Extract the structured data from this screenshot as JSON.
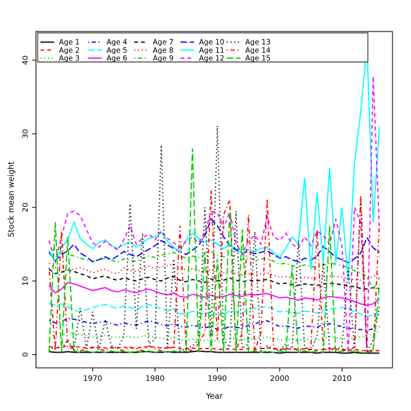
{
  "figure": {
    "background": "#ffffff",
    "xlabel": "Year",
    "ylabel": "Stock mean weight"
  },
  "chart_data": {
    "type": "line",
    "title": "",
    "xlabel": "Year",
    "ylabel": "Stock mean weight",
    "grid": false,
    "legend_position": "top",
    "legend_ncol": 5,
    "xlim": [
      1960.9,
      2018.1
    ],
    "ylim": [
      -1.8,
      43.9
    ],
    "x_ticks": [
      1970,
      1980,
      1990,
      2000,
      2010
    ],
    "y_ticks": [
      0,
      10,
      20,
      30,
      40
    ],
    "x": [
      1963,
      1964,
      1965,
      1966,
      1967,
      1968,
      1969,
      1970,
      1971,
      1972,
      1973,
      1974,
      1975,
      1976,
      1977,
      1978,
      1979,
      1980,
      1981,
      1982,
      1983,
      1984,
      1985,
      1986,
      1987,
      1988,
      1989,
      1990,
      1991,
      1992,
      1993,
      1994,
      1995,
      1996,
      1997,
      1998,
      1999,
      2000,
      2001,
      2002,
      2003,
      2004,
      2005,
      2006,
      2007,
      2008,
      2009,
      2010,
      2011,
      2012,
      2013,
      2014,
      2015,
      2016
    ],
    "series": [
      {
        "name": "Age 1",
        "color": "#000000",
        "linestyle": "solid",
        "values": [
          0.4,
          0.3,
          0.3,
          0.4,
          0.3,
          0.3,
          0.3,
          0.3,
          0.3,
          0.3,
          0.3,
          0.3,
          0.3,
          0.3,
          0.3,
          0.4,
          0.4,
          0.3,
          0.3,
          0.4,
          0.3,
          0.3,
          0.3,
          0.4,
          0.5,
          0.4,
          0.4,
          0.3,
          0.3,
          0.3,
          0.3,
          0.3,
          0.3,
          0.3,
          0.3,
          0.3,
          0.3,
          0.2,
          0.3,
          0.3,
          0.3,
          0.3,
          0.3,
          0.2,
          0.3,
          0.3,
          0.3,
          0.2,
          0.2,
          0.3,
          0.2,
          0.2,
          0.2,
          0.2
        ]
      },
      {
        "name": "Age 2",
        "color": "#FF0000",
        "linestyle": "dashed",
        "values": [
          1.1,
          0.9,
          1.0,
          1.2,
          1.1,
          1.0,
          0.9,
          0.9,
          1.0,
          0.9,
          0.9,
          0.9,
          1.0,
          0.9,
          0.9,
          1.0,
          1.1,
          1.0,
          0.9,
          0.9,
          1.0,
          0.8,
          0.8,
          0.9,
          0.8,
          0.8,
          0.9,
          0.7,
          0.7,
          0.8,
          0.7,
          0.7,
          0.8,
          0.7,
          0.8,
          0.9,
          0.8,
          0.7,
          0.8,
          0.7,
          0.7,
          0.8,
          0.7,
          0.6,
          0.7,
          0.8,
          0.7,
          0.6,
          0.6,
          0.7,
          0.6,
          0.5,
          0.6,
          0.5
        ]
      },
      {
        "name": "Age 3",
        "color": "#00CD00",
        "linestyle": "dotted",
        "values": [
          2.8,
          2.5,
          2.6,
          3.0,
          2.9,
          2.7,
          2.6,
          2.4,
          2.5,
          2.6,
          2.4,
          2.3,
          2.5,
          2.4,
          2.3,
          2.5,
          2.6,
          2.4,
          2.2,
          2.1,
          2.3,
          2.0,
          1.9,
          2.1,
          2.0,
          1.9,
          2.1,
          1.8,
          1.9,
          2.2,
          2.1,
          2.0,
          2.2,
          2.1,
          2.3,
          2.4,
          2.2,
          2.0,
          2.1,
          2.0,
          1.9,
          2.1,
          2.0,
          1.9,
          2.2,
          2.4,
          2.3,
          2.2,
          2.1,
          2.3,
          2.4,
          2.5,
          2.8,
          3.2
        ]
      },
      {
        "name": "Age 4",
        "color": "#0000FF",
        "linestyle": "dotdash",
        "values": [
          4.7,
          4.3,
          4.5,
          4.9,
          4.8,
          4.6,
          4.4,
          4.2,
          4.4,
          4.5,
          4.2,
          4.0,
          4.3,
          4.1,
          4.0,
          4.3,
          4.6,
          4.4,
          4.1,
          3.9,
          4.2,
          3.8,
          3.7,
          4.0,
          3.8,
          3.6,
          3.9,
          3.4,
          3.5,
          3.8,
          3.7,
          3.6,
          4.0,
          4.2,
          4.4,
          4.6,
          4.2,
          3.8,
          3.9,
          3.7,
          3.6,
          3.9,
          3.8,
          3.7,
          4.1,
          4.2,
          4.0,
          3.8,
          3.6,
          3.5,
          3.4,
          3.3,
          3.5,
          3.8
        ]
      },
      {
        "name": "Age 5",
        "color": "#00FFFF",
        "linestyle": "longdash",
        "values": [
          7.0,
          6.7,
          6.9,
          6.5,
          6.0,
          5.9,
          6.1,
          6.4,
          6.6,
          6.8,
          6.5,
          6.3,
          6.6,
          6.4,
          6.2,
          6.5,
          6.8,
          6.6,
          6.2,
          5.9,
          6.2,
          5.6,
          5.5,
          5.9,
          5.7,
          5.5,
          5.8,
          5.4,
          5.5,
          5.9,
          5.8,
          5.7,
          6.1,
          6.3,
          6.4,
          6.5,
          6.2,
          5.8,
          5.9,
          5.7,
          5.6,
          5.9,
          5.8,
          5.6,
          6.0,
          6.2,
          6.3,
          6.4,
          6.2,
          5.8,
          5.5,
          5.2,
          5.4,
          5.6
        ]
      },
      {
        "name": "Age 6",
        "color": "#FF00FF",
        "linestyle": "solid",
        "values": [
          9.4,
          8.4,
          8.9,
          9.8,
          9.6,
          9.3,
          9.0,
          8.7,
          8.9,
          9.1,
          8.7,
          8.5,
          8.8,
          8.6,
          8.4,
          8.7,
          8.9,
          8.6,
          8.3,
          8.1,
          8.4,
          7.9,
          7.8,
          8.2,
          8.0,
          7.8,
          8.1,
          7.8,
          7.9,
          8.2,
          8.0,
          7.9,
          8.2,
          8.1,
          8.2,
          8.3,
          8.0,
          7.7,
          7.8,
          7.6,
          7.4,
          7.7,
          7.6,
          7.4,
          7.7,
          7.9,
          7.8,
          7.7,
          7.5,
          7.2,
          6.9,
          6.7,
          6.9,
          7.6
        ]
      },
      {
        "name": "Age 7",
        "color": "#000000",
        "linestyle": "dashed",
        "values": [
          11.6,
          11.0,
          11.2,
          11.5,
          11.3,
          11.0,
          10.7,
          10.3,
          10.5,
          10.7,
          10.3,
          10.1,
          10.4,
          10.2,
          10.0,
          10.3,
          10.5,
          10.2,
          10.0,
          10.4,
          10.6,
          10.1,
          9.9,
          10.2,
          10.0,
          9.8,
          10.3,
          10.0,
          10.1,
          10.4,
          10.1,
          9.9,
          10.1,
          10.0,
          10.1,
          10.2,
          9.9,
          9.6,
          9.7,
          9.5,
          9.4,
          9.6,
          9.5,
          9.4,
          9.6,
          9.7,
          9.6,
          9.5,
          9.4,
          9.2,
          9.0,
          8.9,
          9.1,
          9.0
        ]
      },
      {
        "name": "Age 8",
        "color": "#FF0000",
        "linestyle": "dotted",
        "values": [
          12.4,
          11.8,
          12.0,
          11.4,
          11.6,
          11.8,
          11.5,
          11.1,
          11.4,
          11.6,
          11.2,
          11.0,
          11.8,
          11.5,
          11.3,
          11.7,
          12.0,
          11.7,
          11.9,
          12.1,
          12.3,
          11.8,
          11.5,
          11.7,
          11.4,
          11.2,
          11.6,
          11.2,
          11.1,
          11.3,
          11.0,
          10.8,
          11.0,
          10.9,
          11.0,
          11.1,
          10.8,
          10.5,
          10.6,
          10.4,
          10.3,
          10.5,
          10.4,
          10.3,
          10.6,
          10.7,
          10.6,
          10.5,
          10.4,
          10.2,
          10.1,
          10.3,
          10.6,
          11.0
        ]
      },
      {
        "name": "Age 9",
        "color": "#00CD00",
        "linestyle": "dotdash",
        "values": [
          13.8,
          14.5,
          13.9,
          13.6,
          13.4,
          13.1,
          12.9,
          12.7,
          12.9,
          13.1,
          12.8,
          12.6,
          13.0,
          12.8,
          12.7,
          13.1,
          13.4,
          13.2,
          13.5,
          13.7,
          13.9,
          13.4,
          13.1,
          13.4,
          13.2,
          13.6,
          14.0,
          13.5,
          13.3,
          13.6,
          13.2,
          12.9,
          13.1,
          12.9,
          13.0,
          13.1,
          12.7,
          12.3,
          12.4,
          12.1,
          11.9,
          12.2,
          12.0,
          11.8,
          12.2,
          12.4,
          12.3,
          12.1,
          11.8,
          11.4,
          11.1,
          10.6,
          8.8,
          10.5
        ]
      },
      {
        "name": "Age 10",
        "color": "#0000FF",
        "linestyle": "longdash",
        "values": [
          13.9,
          12.8,
          13.6,
          14.1,
          15.0,
          13.8,
          13.3,
          12.6,
          12.9,
          13.3,
          12.9,
          13.4,
          14.0,
          13.6,
          13.3,
          13.8,
          14.3,
          14.8,
          15.5,
          14.9,
          14.4,
          14.0,
          13.6,
          14.2,
          14.8,
          16.2,
          18.4,
          17.5,
          16.0,
          14.8,
          14.2,
          13.8,
          14.0,
          13.7,
          13.9,
          14.1,
          13.6,
          13.1,
          13.3,
          12.9,
          12.6,
          13.1,
          12.8,
          13.4,
          14.7,
          14.0,
          13.2,
          12.9,
          12.5,
          13.0,
          13.8,
          15.9,
          14.5,
          13.9
        ]
      },
      {
        "name": "Age 11",
        "color": "#00FFFF",
        "linestyle": "solid",
        "values": [
          14.2,
          12.6,
          14.6,
          15.6,
          18.0,
          15.8,
          15.0,
          14.4,
          15.2,
          15.6,
          14.8,
          14.4,
          15.0,
          15.3,
          14.6,
          15.2,
          15.8,
          16.0,
          16.6,
          15.4,
          14.6,
          14.0,
          15.6,
          16.5,
          15.8,
          15.2,
          15.6,
          15.0,
          14.4,
          14.9,
          14.4,
          13.8,
          14.3,
          14.0,
          14.4,
          14.6,
          13.9,
          13.2,
          14.5,
          16.0,
          15.0,
          24.0,
          11.5,
          22.0,
          12.5,
          25.4,
          12.5,
          20.0,
          10.0,
          26.0,
          33.0,
          42.0,
          18.0,
          31.0
        ]
      },
      {
        "name": "Age 12",
        "color": "#FF00FF",
        "linestyle": "dashed",
        "values": [
          15.5,
          12.6,
          16.0,
          19.2,
          19.5,
          18.9,
          17.0,
          15.2,
          14.6,
          15.4,
          14.8,
          14.2,
          15.6,
          17.5,
          15.0,
          15.8,
          16.4,
          15.6,
          16.8,
          15.8,
          15.2,
          14.6,
          15.4,
          16.0,
          15.2,
          16.6,
          19.5,
          19.3,
          17.2,
          19.4,
          15.2,
          13.6,
          15.5,
          16.2,
          15.0,
          18.8,
          16.0,
          15.5,
          16.5,
          15.0,
          14.5,
          16.0,
          14.8,
          16.8,
          16.2,
          15.0,
          18.4,
          14.7,
          0.3,
          20.0,
          18.0,
          0.3,
          37.8,
          17.0
        ]
      },
      {
        "name": "Age 13",
        "color": "#000000",
        "linestyle": "dotted",
        "values": [
          0.5,
          1.2,
          0.8,
          2.0,
          0.6,
          6.3,
          0.8,
          5.8,
          0.6,
          4.8,
          1.2,
          0.8,
          2.5,
          20.5,
          3.5,
          16.5,
          1.5,
          2.0,
          28.5,
          1.0,
          13.0,
          0.5,
          0.8,
          1.2,
          2.0,
          20.0,
          2.5,
          31.1,
          2.0,
          1.0,
          19.5,
          0.8,
          1.5,
          16.7,
          0.5,
          1.2,
          0.8,
          0.5,
          1.5,
          0.8,
          15.5,
          1.0,
          0.5,
          2.5,
          12.5,
          0.8,
          0.5,
          1.2,
          11.8,
          0.5,
          21.5,
          0.3,
          2.0,
          6.5
        ]
      },
      {
        "name": "Age 14",
        "color": "#FF0000",
        "linestyle": "dotdash",
        "values": [
          11.8,
          0.5,
          16.8,
          1.0,
          0.8,
          0.5,
          0.8,
          1.0,
          0.8,
          0.5,
          1.0,
          0.8,
          0.5,
          1.0,
          0.8,
          0.5,
          1.2,
          0.8,
          0.5,
          1.0,
          0.8,
          17.5,
          0.8,
          0.5,
          1.5,
          3.0,
          22.4,
          2.0,
          19.0,
          21.0,
          0.5,
          3.0,
          19.0,
          0.5,
          3.0,
          21.2,
          1.0,
          0.5,
          0.8,
          1.0,
          0.5,
          0.8,
          1.0,
          17.0,
          0.8,
          0.5,
          1.0,
          0.8,
          0.5,
          1.0,
          21.5,
          0.3,
          0.5,
          18.0
        ]
      },
      {
        "name": "Age 15",
        "color": "#00CD00",
        "linestyle": "longdash",
        "values": [
          0.3,
          18.0,
          0.3,
          16.0,
          0.5,
          0.3,
          0.5,
          0.3,
          0.5,
          0.3,
          0.5,
          0.3,
          0.5,
          0.3,
          0.5,
          0.3,
          0.5,
          0.3,
          0.5,
          0.3,
          0.5,
          0.3,
          0.5,
          28.0,
          0.3,
          14.0,
          0.3,
          13.0,
          0.3,
          19.5,
          0.3,
          17.0,
          0.3,
          0.5,
          0.3,
          0.5,
          0.3,
          0.5,
          0.3,
          12.0,
          0.3,
          0.5,
          0.3,
          0.5,
          0.3,
          17.5,
          0.3,
          0.5,
          0.3,
          0.5,
          0.3,
          0.3,
          0.5,
          9.5
        ]
      }
    ]
  }
}
